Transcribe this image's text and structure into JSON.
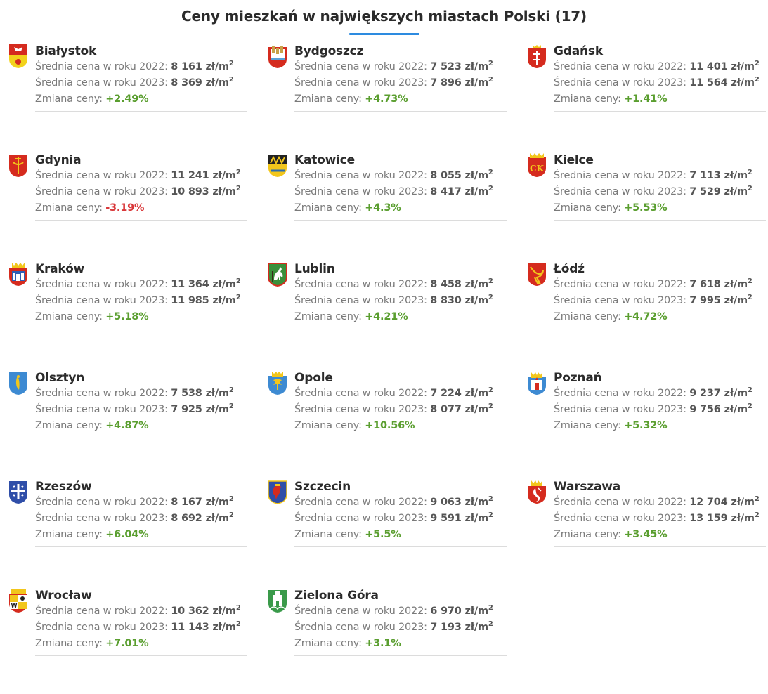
{
  "page": {
    "title": "Ceny mieszkań w największych miastach Polski (17)",
    "accent_color": "#2d8be0",
    "positive_color": "#5a9e2f",
    "negative_color": "#d9383a"
  },
  "labels": {
    "price_2022": "Średnia cena w roku 2022:",
    "price_2023": "Średnia cena w roku 2023:",
    "change": "Zmiana ceny:",
    "unit": "zł/m",
    "unit_sup": "2"
  },
  "cities": [
    {
      "name": "Białystok",
      "p2022": "8 161",
      "p2023": "8 369",
      "change": "+2.49%",
      "trend": "up",
      "crest": "bialystok-crest-icon"
    },
    {
      "name": "Bydgoszcz",
      "p2022": "7 523",
      "p2023": "7 896",
      "change": "+4.73%",
      "trend": "up",
      "crest": "bydgoszcz-crest-icon"
    },
    {
      "name": "Gdańsk",
      "p2022": "11 401",
      "p2023": "11 564",
      "change": "+1.41%",
      "trend": "up",
      "crest": "gdansk-crest-icon"
    },
    {
      "name": "Gdynia",
      "p2022": "11 241",
      "p2023": "10 893",
      "change": "-3.19%",
      "trend": "down",
      "crest": "gdynia-crest-icon"
    },
    {
      "name": "Katowice",
      "p2022": "8 055",
      "p2023": "8 417",
      "change": "+4.3%",
      "trend": "up",
      "crest": "katowice-crest-icon"
    },
    {
      "name": "Kielce",
      "p2022": "7 113",
      "p2023": "7 529",
      "change": "+5.53%",
      "trend": "up",
      "crest": "kielce-crest-icon"
    },
    {
      "name": "Kraków",
      "p2022": "11 364",
      "p2023": "11 985",
      "change": "+5.18%",
      "trend": "up",
      "crest": "krakow-crest-icon"
    },
    {
      "name": "Lublin",
      "p2022": "8 458",
      "p2023": "8 830",
      "change": "+4.21%",
      "trend": "up",
      "crest": "lublin-crest-icon"
    },
    {
      "name": "Łódź",
      "p2022": "7 618",
      "p2023": "7 995",
      "change": "+4.72%",
      "trend": "up",
      "crest": "lodz-crest-icon"
    },
    {
      "name": "Olsztyn",
      "p2022": "7 538",
      "p2023": "7 925",
      "change": "+4.87%",
      "trend": "up",
      "crest": "olsztyn-crest-icon"
    },
    {
      "name": "Opole",
      "p2022": "7 224",
      "p2023": "8 077",
      "change": "+10.56%",
      "trend": "up",
      "crest": "opole-crest-icon"
    },
    {
      "name": "Poznań",
      "p2022": "9 237",
      "p2023": "9 756",
      "change": "+5.32%",
      "trend": "up",
      "crest": "poznan-crest-icon"
    },
    {
      "name": "Rzeszów",
      "p2022": "8 167",
      "p2023": "8 692",
      "change": "+6.04%",
      "trend": "up",
      "crest": "rzeszow-crest-icon"
    },
    {
      "name": "Szczecin",
      "p2022": "9 063",
      "p2023": "9 591",
      "change": "+5.5%",
      "trend": "up",
      "crest": "szczecin-crest-icon"
    },
    {
      "name": "Warszawa",
      "p2022": "12 704",
      "p2023": "13 159",
      "change": "+3.45%",
      "trend": "up",
      "crest": "warszawa-crest-icon"
    },
    {
      "name": "Wrocław",
      "p2022": "10 362",
      "p2023": "11 143",
      "change": "+7.01%",
      "trend": "up",
      "crest": "wroclaw-crest-icon"
    },
    {
      "name": "Zielona Góra",
      "p2022": "6 970",
      "p2023": "7 193",
      "change": "+3.1%",
      "trend": "up",
      "crest": "zielona-gora-crest-icon"
    }
  ]
}
